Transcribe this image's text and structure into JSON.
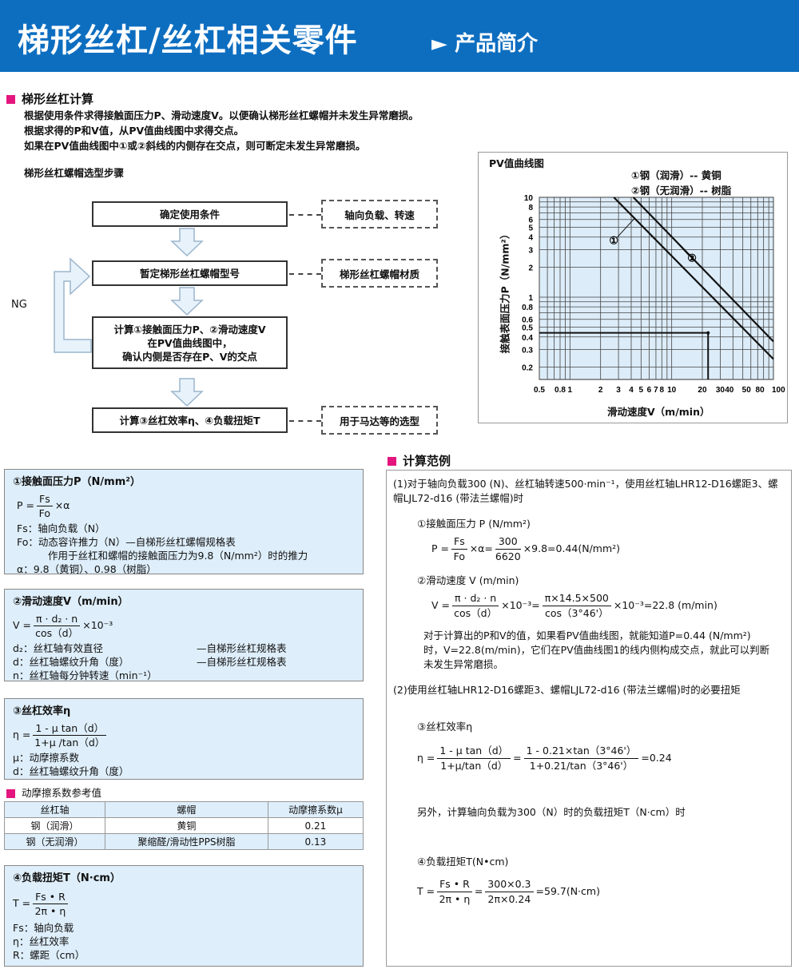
{
  "header": {
    "title": "梯形丝杠/丝杠相关零件",
    "arrow": "►",
    "subtitle": "产品简介"
  },
  "intro": {
    "heading": "梯形丝杠计算",
    "lines": [
      "根据使用条件求得接触面压力P、滑动速度V。以便确认梯形丝杠螺帽并未发生异常磨损。",
      "根据求得的P和V值，从PV值曲线图中求得交点。",
      "如果在PV值曲线图中①或②斜线的内侧存在交点，则可断定未发生异常磨损。"
    ]
  },
  "flow": {
    "title": "梯形丝杠螺帽选型步骤",
    "steps": [
      "确定使用条件",
      "暂定梯形丝杠螺帽型号",
      "计算①接触面压力P、②滑动速度V\n在PV值曲线图中，\n确认内侧是否存在P、V的交点",
      "计算③丝杠效率η、④负载扭矩T"
    ],
    "notes": [
      "轴向负载、转速",
      "梯形丝杠螺帽材质",
      "用于马达等的选型"
    ],
    "ng": "NG"
  },
  "chart_data": {
    "type": "line",
    "title": "PV值曲线图",
    "xlabel": "滑动速度V（m/min）",
    "ylabel": "接触表面压力P（N/mm²）",
    "x_scale": "log",
    "y_scale": "log",
    "xlim": [
      0.5,
      100
    ],
    "ylim": [
      0.15,
      10
    ],
    "grid": true,
    "xticks": [
      {
        "v": 0.5,
        "l": "0.5"
      },
      {
        "v": 0.8,
        "l": "0.8"
      },
      {
        "v": 1,
        "l": "1"
      },
      {
        "v": 2,
        "l": "2"
      },
      {
        "v": 3,
        "l": "3"
      },
      {
        "v": 4,
        "l": "4"
      },
      {
        "v": 5,
        "l": "5"
      },
      {
        "v": 6,
        "l": "6"
      },
      {
        "v": 7,
        "l": "7"
      },
      {
        "v": 8,
        "l": "8"
      },
      {
        "v": 10,
        "l": "10"
      },
      {
        "v": 20,
        "l": "20"
      },
      {
        "v": 30,
        "l": "30"
      },
      {
        "v": 40,
        "l": "40"
      },
      {
        "v": 50,
        "l": "50"
      },
      {
        "v": 80,
        "l": "80"
      },
      {
        "v": 100,
        "l": "100"
      }
    ],
    "yticks": [
      {
        "v": 10,
        "l": "10"
      },
      {
        "v": 8,
        "l": "8"
      },
      {
        "v": 6,
        "l": "6"
      },
      {
        "v": 5,
        "l": "5"
      },
      {
        "v": 4,
        "l": "4"
      },
      {
        "v": 3,
        "l": "3"
      },
      {
        "v": 2,
        "l": "2"
      },
      {
        "v": 1,
        "l": "1"
      },
      {
        "v": 0.8,
        "l": "0.8"
      },
      {
        "v": 0.6,
        "l": "0.6"
      },
      {
        "v": 0.5,
        "l": "0.5"
      },
      {
        "v": 0.4,
        "l": "0.4"
      },
      {
        "v": 0.3,
        "l": "0.3"
      },
      {
        "v": 0.2,
        "l": "0.2"
      }
    ],
    "legend": [
      "①钢（润滑）-- 黄铜",
      "②钢（无润滑）-- 树脂"
    ],
    "series": [
      {
        "name": "①",
        "points": [
          [
            2.7,
            10
          ],
          [
            100,
            0.24
          ]
        ]
      },
      {
        "name": "②",
        "points": [
          [
            4.2,
            10
          ],
          [
            100,
            0.36
          ]
        ]
      }
    ],
    "marker": {
      "x": 22.8,
      "y": 0.44
    }
  },
  "box1": {
    "title": "①接触面压力P（N/mm²）",
    "lhs": "P =",
    "num": "Fs",
    "den": "Fo",
    "rhs": "×α",
    "lines": [
      "Fs：轴向负载（N）",
      "Fo：动态容许推力（N）—自梯形丝杠螺帽规格表",
      "作用于丝杠和螺帽的接触面压力为9.8（N/mm²）时的推力",
      "α：9.8（黄铜）、0.98（树脂）"
    ]
  },
  "box2": {
    "title": "②滑动速度V（m/min）",
    "lhs": "V =",
    "num": "π · d₂ · n",
    "den": "cos（d）",
    "rhs": "×10⁻³",
    "lines": [
      [
        "d₂：丝杠轴有效直径",
        "—自梯形丝杠规格表"
      ],
      [
        "d：丝杠轴螺纹升角（度）",
        "—自梯形丝杠规格表"
      ],
      [
        "n：丝杠轴每分钟转速（min⁻¹）",
        ""
      ]
    ]
  },
  "box3": {
    "title": "③丝杠效率η",
    "lhs": "η =",
    "num": "1 - μ tan（d）",
    "den": "1+μ /tan（d）",
    "lines": [
      "μ：动摩擦系数",
      "d：丝杠轴螺纹升角（度）"
    ]
  },
  "friction": {
    "heading": "动摩擦系数参考值",
    "headers": [
      "丝杠轴",
      "螺帽",
      "动摩擦系数μ"
    ],
    "rows": [
      [
        "钢（润滑）",
        "黄铜",
        "0.21"
      ],
      [
        "钢（无润滑）",
        "聚缩醛/滑动性PPS树脂",
        "0.13"
      ]
    ]
  },
  "box4": {
    "title": "④负载扭矩T（N·cm）",
    "lhs": "T =",
    "num": "Fs • R",
    "den": "2π • η",
    "lines": [
      "Fs：轴向负载",
      "η：丝杠效率",
      "R：螺距（cm）"
    ]
  },
  "example": {
    "heading": "计算范例",
    "case1": "(1)对于轴向负载300 (N)、丝杠轴转速500·min⁻¹，使用丝杠轴LHR12-D16螺距3、螺帽LJL72-d16 (带法兰螺帽)时",
    "p_title": "①接触面压力 P (N/mm²)",
    "p_f": [
      "P =",
      "Fs",
      "Fo",
      "×α=",
      "300",
      "6620",
      "×9.8=0.44(N/mm²)"
    ],
    "v_title": "②滑动速度 V (m/min)",
    "v_f": [
      "V =",
      "π · d₂ · n",
      "cos（d）",
      "×10⁻³=",
      "π×14.5×500",
      "cos（3°46'）",
      "×10⁻³=22.8 (m/min)"
    ],
    "conclusion": "对于计算出的P和V的值，如果看PV值曲线图，就能知道P=0.44 (N/mm²)时，V=22.8(m/min)，它们在PV值曲线图1的线内侧构成交点，就此可以判断未发生异常磨损。",
    "case2": "(2)使用丝杠轴LHR12-D16螺距3、螺帽LJL72-d16 (带法兰螺帽)时的必要扭矩",
    "eta_title": "③丝杠效率η",
    "eta_f": [
      "η =",
      "1 - μ tan（d）",
      "1+μ/tan（d）",
      "=",
      "1 - 0.21×tan（3°46'）",
      "1+0.21/tan（3°46'）",
      "=0.24"
    ],
    "load_note": "另外，计算轴向负载为300（N）时的负载扭矩T（N·cm）时",
    "t_title": "④负载扭矩T(N•cm)",
    "t_f": [
      "T =",
      "Fs • R",
      "2π • η",
      "=",
      "300×0.3",
      "2π×0.24",
      "=59.7(N·cm)"
    ]
  }
}
